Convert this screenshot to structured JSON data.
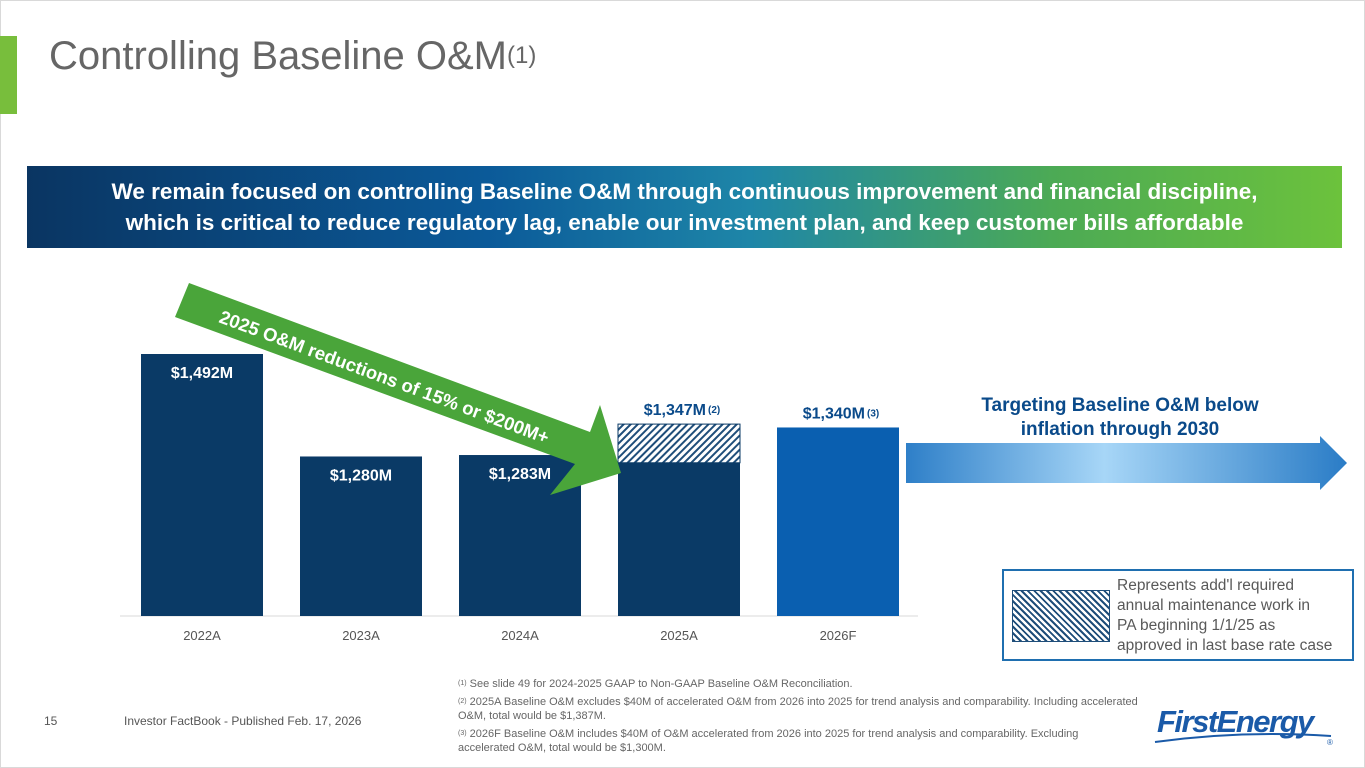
{
  "page": {
    "title": "Controlling Baseline O&M",
    "title_footnote": "(1)",
    "banner_line1": "We remain focused on controlling Baseline O&M through continuous improvement and financial discipline,",
    "banner_line2": "which is critical to reduce regulatory lag, enable our investment plan, and keep customer bills affordable",
    "arrow_label": "2025 O&M reductions of 15% or $200M+",
    "target_line1": "Targeting Baseline O&M below",
    "target_line2": "inflation through 2030",
    "legend_line1": "Represents add'l required",
    "legend_line2": "annual maintenance work in",
    "legend_line3": "PA beginning 1/1/25 as",
    "legend_line4": "approved in last base rate case",
    "page_number": "15",
    "source": "Investor FactBook - Published Feb. 17, 2026",
    "footnote1_mark": "(1)",
    "footnote1": " See slide 49 for 2024-2025 GAAP to Non-GAAP Baseline O&M Reconciliation.",
    "footnote2_mark": "(2)",
    "footnote2": " 2025A Baseline O&M excludes $40M of accelerated O&M from 2026 into 2025 for trend analysis and comparability. Including accelerated O&M, total would be $1,387M.",
    "footnote3_mark": "(3)",
    "footnote3": " 2026F Baseline O&M includes $40M of O&M accelerated from 2026 into 2025 for trend analysis and comparability. Excluding accelerated O&M, total would be $1,300M.",
    "logo_text": "FirstEnergy",
    "logo_mark": "®"
  },
  "colors": {
    "bar_actual": "#0a3a66",
    "bar_forecast": "#0a5fb0",
    "accent_green": "#78be3c",
    "arrow_green": "#4aa53a",
    "label_blue": "#0a4a8a"
  },
  "chart_data": {
    "type": "bar",
    "categories": [
      "2022A",
      "2023A",
      "2024A",
      "2025A",
      "2026F"
    ],
    "values": [
      1492,
      1280,
      1283,
      1347,
      1340
    ],
    "hatched_addition": [
      0,
      0,
      0,
      80,
      0
    ],
    "labels": [
      "$1,492M",
      "$1,280M",
      "$1,283M",
      "$1,347M",
      "$1,340M"
    ],
    "label_notes": [
      "",
      "",
      "",
      "(2)",
      "(3)"
    ],
    "ylim": [
      950,
      1510
    ],
    "xlabel": "",
    "ylabel": ""
  }
}
